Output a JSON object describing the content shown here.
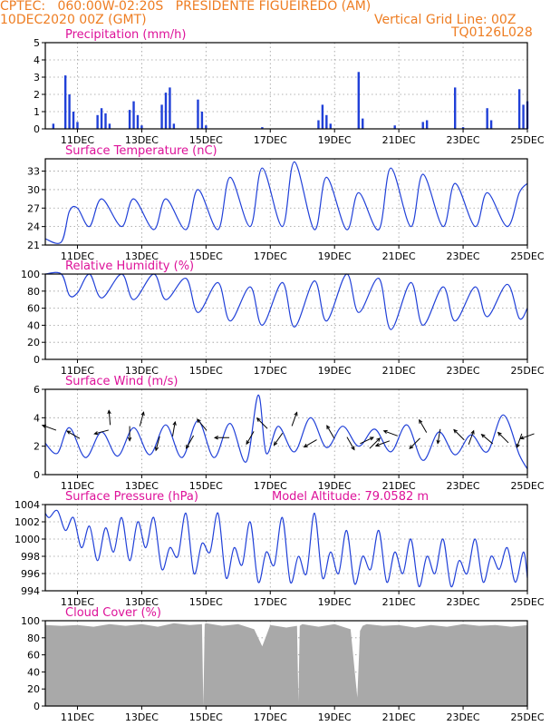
{
  "header": {
    "line1": "CPTEC:   060:00W-02:20S   PRESIDENTE FIGUEIREDO (AM)",
    "date": "10DEC2020 00Z (GMT)",
    "grid_note": "Vertical Grid Line: 00Z",
    "code": "TQ0126L028"
  },
  "colors": {
    "header": "#ee7d22",
    "title": "#dd1199",
    "series": "#2040d8",
    "cloud": "#a9a9a9"
  },
  "chart_data": [
    {
      "type": "bar",
      "title": "Precipitation (mm/h)",
      "x_start_day": 10,
      "x_end_day": 25,
      "xticks": [
        "11DEC",
        "13DEC",
        "15DEC",
        "17DEC",
        "19DEC",
        "21DEC",
        "23DEC",
        "25DEC"
      ],
      "ylim": [
        0,
        5
      ],
      "yticks": [
        0,
        1,
        2,
        3,
        4,
        5
      ],
      "grid": true,
      "x": [
        "10DEC 06Z",
        "10DEC 15Z",
        "10DEC 18Z",
        "10DEC 21Z",
        "11DEC 00Z",
        "11DEC 15Z",
        "11DEC 18Z",
        "11DEC 21Z",
        "12DEC 00Z",
        "12DEC 15Z",
        "12DEC 18Z",
        "12DEC 21Z",
        "13DEC 00Z",
        "13DEC 15Z",
        "13DEC 18Z",
        "13DEC 21Z",
        "14DEC 00Z",
        "14DEC 18Z",
        "14DEC 21Z",
        "15DEC 00Z",
        "16DEC 18Z",
        "18DEC 12Z",
        "18DEC 15Z",
        "18DEC 18Z",
        "18DEC 21Z",
        "19DEC 18Z",
        "19DEC 21Z",
        "20DEC 21Z",
        "21DEC 18Z",
        "21DEC 21Z",
        "22DEC 18Z",
        "23DEC 00Z",
        "23DEC 18Z",
        "23DEC 21Z",
        "24DEC 18Z",
        "24DEC 21Z",
        "25DEC 00Z"
      ],
      "values": [
        0.3,
        3.1,
        2.0,
        1.0,
        0.4,
        0.8,
        1.2,
        0.9,
        0.3,
        1.1,
        1.6,
        0.8,
        0.2,
        1.4,
        2.1,
        2.4,
        0.3,
        1.7,
        1.0,
        0.2,
        0.1,
        0.5,
        1.4,
        0.8,
        0.3,
        3.3,
        0.6,
        0.2,
        0.4,
        0.5,
        2.4,
        0.1,
        1.2,
        0.5,
        2.3,
        1.4,
        1.6
      ]
    },
    {
      "type": "line",
      "title": "Surface Temperature (nC)",
      "x_start_day": 10,
      "x_end_day": 25,
      "xticks": [
        "11DEC",
        "13DEC",
        "15DEC",
        "17DEC",
        "19DEC",
        "21DEC",
        "23DEC",
        "25DEC"
      ],
      "ylim": [
        21,
        35
      ],
      "yticks": [
        21,
        24,
        27,
        30,
        33
      ],
      "grid": true,
      "x": [
        "10DEC 00Z",
        "10DEC 12Z",
        "10DEC 18Z",
        "11DEC 00Z",
        "11DEC 09Z",
        "11DEC 18Z",
        "12DEC 09Z",
        "12DEC 18Z",
        "13DEC 09Z",
        "13DEC 18Z",
        "14DEC 09Z",
        "14DEC 18Z",
        "15DEC 09Z",
        "15DEC 18Z",
        "16DEC 09Z",
        "16DEC 18Z",
        "17DEC 09Z",
        "17DEC 18Z",
        "18DEC 09Z",
        "18DEC 18Z",
        "19DEC 09Z",
        "19DEC 18Z",
        "20DEC 09Z",
        "20DEC 18Z",
        "21DEC 09Z",
        "21DEC 18Z",
        "22DEC 09Z",
        "22DEC 18Z",
        "23DEC 09Z",
        "23DEC 18Z",
        "24DEC 09Z",
        "24DEC 18Z",
        "25DEC 00Z"
      ],
      "values": [
        22,
        21.5,
        26.5,
        27,
        24,
        28.5,
        24,
        28.5,
        23.5,
        28.5,
        23.5,
        30,
        23.5,
        32,
        24,
        33.5,
        24,
        34.5,
        23.5,
        32,
        23.5,
        29.5,
        23.5,
        33.5,
        24,
        32.5,
        24,
        31,
        24,
        29.5,
        24,
        29.5,
        31
      ]
    },
    {
      "type": "line",
      "title": "Relative Humidity (%)",
      "x_start_day": 10,
      "x_end_day": 25,
      "xticks": [
        "11DEC",
        "13DEC",
        "15DEC",
        "17DEC",
        "19DEC",
        "21DEC",
        "23DEC",
        "25DEC"
      ],
      "ylim": [
        0,
        100
      ],
      "yticks": [
        0,
        20,
        40,
        60,
        80,
        100
      ],
      "grid": true,
      "x": [
        "10DEC 00Z",
        "10DEC 12Z",
        "10DEC 18Z",
        "11DEC 00Z",
        "11DEC 09Z",
        "11DEC 18Z",
        "12DEC 09Z",
        "12DEC 18Z",
        "13DEC 09Z",
        "13DEC 18Z",
        "14DEC 09Z",
        "14DEC 18Z",
        "15DEC 09Z",
        "15DEC 18Z",
        "16DEC 09Z",
        "16DEC 18Z",
        "17DEC 09Z",
        "17DEC 18Z",
        "18DEC 09Z",
        "18DEC 18Z",
        "19DEC 09Z",
        "19DEC 18Z",
        "20DEC 09Z",
        "20DEC 18Z",
        "21DEC 09Z",
        "21DEC 18Z",
        "22DEC 09Z",
        "22DEC 18Z",
        "23DEC 09Z",
        "23DEC 18Z",
        "24DEC 09Z",
        "24DEC 18Z",
        "25DEC 00Z"
      ],
      "values": [
        100,
        100,
        75,
        78,
        100,
        72,
        100,
        70,
        100,
        70,
        95,
        55,
        90,
        45,
        85,
        40,
        90,
        38,
        92,
        45,
        100,
        55,
        95,
        35,
        90,
        40,
        85,
        45,
        85,
        50,
        88,
        48,
        60
      ]
    },
    {
      "type": "line",
      "title": "Surface Wind (m/s)",
      "x_start_day": 10,
      "x_end_day": 25,
      "xticks": [
        "11DEC",
        "13DEC",
        "15DEC",
        "17DEC",
        "19DEC",
        "21DEC",
        "23DEC",
        "25DEC"
      ],
      "ylim": [
        0,
        6
      ],
      "yticks": [
        0,
        2,
        4,
        6
      ],
      "grid": true,
      "x": [
        "10DEC 00Z",
        "10DEC 09Z",
        "10DEC 18Z",
        "11DEC 06Z",
        "11DEC 18Z",
        "12DEC 06Z",
        "12DEC 18Z",
        "13DEC 06Z",
        "13DEC 18Z",
        "14DEC 06Z",
        "14DEC 18Z",
        "15DEC 06Z",
        "15DEC 18Z",
        "16DEC 06Z",
        "16DEC 15Z",
        "16DEC 21Z",
        "17DEC 06Z",
        "17DEC 18Z",
        "18DEC 06Z",
        "18DEC 18Z",
        "19DEC 06Z",
        "19DEC 18Z",
        "20DEC 06Z",
        "20DEC 18Z",
        "21DEC 06Z",
        "21DEC 18Z",
        "22DEC 06Z",
        "22DEC 18Z",
        "23DEC 06Z",
        "23DEC 18Z",
        "24DEC 06Z",
        "24DEC 18Z",
        "25DEC 00Z"
      ],
      "values": [
        2.2,
        1.5,
        3.3,
        1.2,
        3.0,
        1.3,
        3.3,
        1.4,
        3.5,
        1.2,
        3.8,
        1.2,
        3.6,
        0.9,
        5.6,
        1.5,
        3.4,
        1.6,
        4.0,
        1.9,
        3.4,
        2.0,
        3.2,
        1.6,
        3.5,
        1.0,
        3.0,
        1.4,
        2.8,
        1.6,
        4.2,
        1.4,
        0.4
      ],
      "arrows": [
        {
          "x": "10DEC 03Z",
          "speed": 3.3,
          "dir_deg": 160
        },
        {
          "x": "10DEC 21Z",
          "speed": 2.8,
          "dir_deg": 150
        },
        {
          "x": "11DEC 18Z",
          "speed": 3.0,
          "dir_deg": 195
        },
        {
          "x": "12DEC 00Z",
          "speed": 4.0,
          "dir_deg": 95
        },
        {
          "x": "12DEC 15Z",
          "speed": 2.9,
          "dir_deg": 270
        },
        {
          "x": "13DEC 00Z",
          "speed": 3.9,
          "dir_deg": 75
        },
        {
          "x": "13DEC 12Z",
          "speed": 2.2,
          "dir_deg": 255
        },
        {
          "x": "14DEC 00Z",
          "speed": 3.2,
          "dir_deg": 80
        },
        {
          "x": "14DEC 12Z",
          "speed": 2.3,
          "dir_deg": 240
        },
        {
          "x": "14DEC 21Z",
          "speed": 3.5,
          "dir_deg": 130
        },
        {
          "x": "15DEC 12Z",
          "speed": 2.6,
          "dir_deg": 180
        },
        {
          "x": "16DEC 09Z",
          "speed": 2.6,
          "dir_deg": 240
        },
        {
          "x": "16DEC 18Z",
          "speed": 3.6,
          "dir_deg": 135
        },
        {
          "x": "17DEC 06Z",
          "speed": 2.5,
          "dir_deg": 235
        },
        {
          "x": "17DEC 18Z",
          "speed": 3.9,
          "dir_deg": 70
        },
        {
          "x": "18DEC 06Z",
          "speed": 2.2,
          "dir_deg": 210
        },
        {
          "x": "18DEC 21Z",
          "speed": 3.0,
          "dir_deg": 120
        },
        {
          "x": "19DEC 12Z",
          "speed": 2.2,
          "dir_deg": 300
        },
        {
          "x": "20DEC 00Z",
          "speed": 2.4,
          "dir_deg": 25
        },
        {
          "x": "20DEC 06Z",
          "speed": 2.2,
          "dir_deg": 45
        },
        {
          "x": "20DEC 12Z",
          "speed": 2.2,
          "dir_deg": 200
        },
        {
          "x": "20DEC 18Z",
          "speed": 2.9,
          "dir_deg": 160
        },
        {
          "x": "21DEC 12Z",
          "speed": 2.2,
          "dir_deg": 225
        },
        {
          "x": "21DEC 18Z",
          "speed": 3.4,
          "dir_deg": 120
        },
        {
          "x": "22DEC 06Z",
          "speed": 2.7,
          "dir_deg": 260
        },
        {
          "x": "22DEC 21Z",
          "speed": 2.8,
          "dir_deg": 135
        },
        {
          "x": "23DEC 06Z",
          "speed": 2.6,
          "dir_deg": 70
        },
        {
          "x": "23DEC 18Z",
          "speed": 2.5,
          "dir_deg": 140
        },
        {
          "x": "24DEC 06Z",
          "speed": 2.6,
          "dir_deg": 135
        },
        {
          "x": "24DEC 18Z",
          "speed": 2.4,
          "dir_deg": 250
        },
        {
          "x": "25DEC 00Z",
          "speed": 2.7,
          "dir_deg": 200
        }
      ]
    },
    {
      "type": "line",
      "title": "Surface Pressure (hPa)",
      "annotation": "Model Altitude: 79.0582 m",
      "x_start_day": 10,
      "x_end_day": 25,
      "xticks": [
        "11DEC",
        "13DEC",
        "15DEC",
        "17DEC",
        "19DEC",
        "21DEC",
        "23DEC",
        "25DEC"
      ],
      "ylim": [
        994,
        1004
      ],
      "yticks": [
        994,
        996,
        998,
        1000,
        1002,
        1004
      ],
      "grid": true,
      "x": [
        "10DEC 00Z",
        "10DEC 03Z",
        "10DEC 09Z",
        "10DEC 15Z",
        "10DEC 21Z",
        "11DEC 03Z",
        "11DEC 09Z",
        "11DEC 15Z",
        "11DEC 21Z",
        "12DEC 03Z",
        "12DEC 09Z",
        "12DEC 15Z",
        "12DEC 21Z",
        "13DEC 03Z",
        "13DEC 09Z",
        "13DEC 15Z",
        "13DEC 21Z",
        "14DEC 03Z",
        "14DEC 09Z",
        "14DEC 15Z",
        "14DEC 21Z",
        "15DEC 03Z",
        "15DEC 09Z",
        "15DEC 15Z",
        "15DEC 21Z",
        "16DEC 03Z",
        "16DEC 09Z",
        "16DEC 15Z",
        "16DEC 21Z",
        "17DEC 03Z",
        "17DEC 09Z",
        "17DEC 15Z",
        "17DEC 21Z",
        "18DEC 03Z",
        "18DEC 09Z",
        "18DEC 15Z",
        "18DEC 21Z",
        "19DEC 03Z",
        "19DEC 09Z",
        "19DEC 15Z",
        "19DEC 21Z",
        "20DEC 03Z",
        "20DEC 09Z",
        "20DEC 15Z",
        "20DEC 21Z",
        "21DEC 03Z",
        "21DEC 09Z",
        "21DEC 15Z",
        "21DEC 21Z",
        "22DEC 03Z",
        "22DEC 09Z",
        "22DEC 15Z",
        "22DEC 21Z",
        "23DEC 03Z",
        "23DEC 09Z",
        "23DEC 15Z",
        "23DEC 21Z",
        "24DEC 03Z",
        "24DEC 09Z",
        "24DEC 15Z",
        "24DEC 21Z",
        "25DEC 00Z"
      ],
      "values": [
        1003,
        1002.5,
        1003.3,
        1001,
        1002.5,
        999,
        1001.5,
        997.5,
        1001.3,
        998.5,
        1002.5,
        997.5,
        1002,
        999,
        1002.5,
        996.5,
        999,
        998,
        1003,
        996,
        999.5,
        998.5,
        1003,
        995.5,
        999,
        997,
        1002,
        995,
        998.5,
        997,
        1002.5,
        995,
        998,
        996,
        1003,
        995.5,
        998.5,
        996,
        1001,
        994.8,
        998,
        996.5,
        1001,
        995,
        998.5,
        996,
        1000,
        994.5,
        998,
        996,
        1000,
        994.5,
        997.5,
        996,
        1000,
        995,
        998,
        996.5,
        999,
        995,
        998.5,
        995.5
      ]
    },
    {
      "type": "area",
      "title": "Cloud Cover (%)",
      "x_start_day": 10,
      "x_end_day": 25,
      "xticks": [
        "11DEC",
        "13DEC",
        "15DEC",
        "17DEC",
        "19DEC",
        "21DEC",
        "23DEC",
        "25DEC"
      ],
      "ylim": [
        0,
        100
      ],
      "yticks": [
        0,
        20,
        40,
        60,
        80,
        100
      ],
      "grid": true,
      "x": [
        "10DEC 00Z",
        "10DEC 12Z",
        "11DEC 00Z",
        "11DEC 12Z",
        "12DEC 00Z",
        "12DEC 12Z",
        "13DEC 00Z",
        "13DEC 12Z",
        "14DEC 00Z",
        "14DEC 12Z",
        "14DEC 21Z",
        "14DEC 22Z",
        "14DEC 23Z",
        "15DEC 00Z",
        "15DEC 12Z",
        "16DEC 00Z",
        "16DEC 12Z",
        "16DEC 18Z",
        "17DEC 00Z",
        "17DEC 12Z",
        "17DEC 20Z",
        "17DEC 21Z",
        "17DEC 22Z",
        "18DEC 00Z",
        "18DEC 12Z",
        "19DEC 00Z",
        "19DEC 12Z",
        "19DEC 17Z",
        "19DEC 19Z",
        "19DEC 21Z",
        "20DEC 00Z",
        "20DEC 12Z",
        "21DEC 00Z",
        "21DEC 12Z",
        "22DEC 00Z",
        "22DEC 12Z",
        "23DEC 00Z",
        "23DEC 12Z",
        "24DEC 00Z",
        "24DEC 12Z",
        "25DEC 00Z"
      ],
      "values": [
        95,
        94,
        95,
        93,
        96,
        94,
        96,
        93,
        97,
        95,
        96,
        0,
        96,
        97,
        94,
        96,
        90,
        70,
        95,
        92,
        94,
        5,
        94,
        96,
        93,
        96,
        90,
        10,
        88,
        94,
        96,
        94,
        95,
        92,
        95,
        93,
        96,
        94,
        95,
        93,
        95
      ]
    }
  ]
}
